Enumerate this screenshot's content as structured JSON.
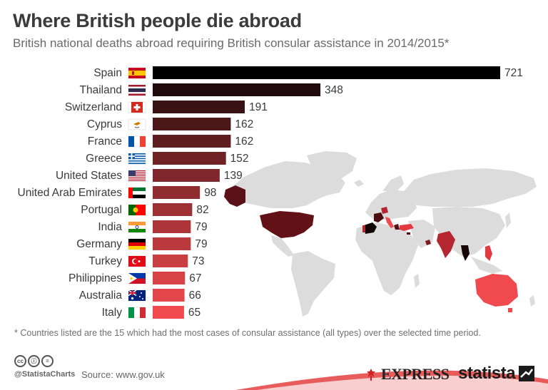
{
  "header": {
    "title": "Where British people die abroad",
    "subtitle": "British national deaths abroad requiring British consular assistance in 2014/2015*"
  },
  "chart_data": {
    "type": "bar",
    "orientation": "horizontal",
    "categories": [
      "Spain",
      "Thailand",
      "Switzerland",
      "Cyprus",
      "France",
      "Greece",
      "United States",
      "United Arab Emirates",
      "Portugal",
      "India",
      "Germany",
      "Turkey",
      "Philippines",
      "Australia",
      "Italy"
    ],
    "values": [
      721,
      348,
      191,
      162,
      162,
      152,
      139,
      98,
      82,
      79,
      79,
      73,
      67,
      66,
      65
    ],
    "title": "Where British people die abroad",
    "subtitle": "British national deaths abroad requiring British consular assistance in 2014/2015*",
    "xlabel": "",
    "ylabel": "",
    "xlim": [
      0,
      721
    ],
    "grid": false,
    "legend": "none",
    "data_labels": true,
    "flags": [
      "flag-spain-icon",
      "flag-thailand-icon",
      "flag-switzerland-icon",
      "flag-cyprus-icon",
      "flag-france-icon",
      "flag-greece-icon",
      "flag-united-states-icon",
      "flag-uae-icon",
      "flag-portugal-icon",
      "flag-india-icon",
      "flag-germany-icon",
      "flag-turkey-icon",
      "flag-philippines-icon",
      "flag-australia-icon",
      "flag-italy-icon"
    ],
    "colors": {
      "low": "#f04a4f",
      "high": "#000000",
      "map_land": "#dcdcdc"
    }
  },
  "footer": {
    "footnote": "* Countries listed are the 15 which had the most cases of consular assistance (all types) over the selected time period.",
    "cc_icons": [
      "cc",
      "ⓘ",
      "="
    ],
    "handle": "@StatistaCharts",
    "source": "Source: www.gov.uk",
    "express": "EXPRESS",
    "statista": "statista"
  }
}
